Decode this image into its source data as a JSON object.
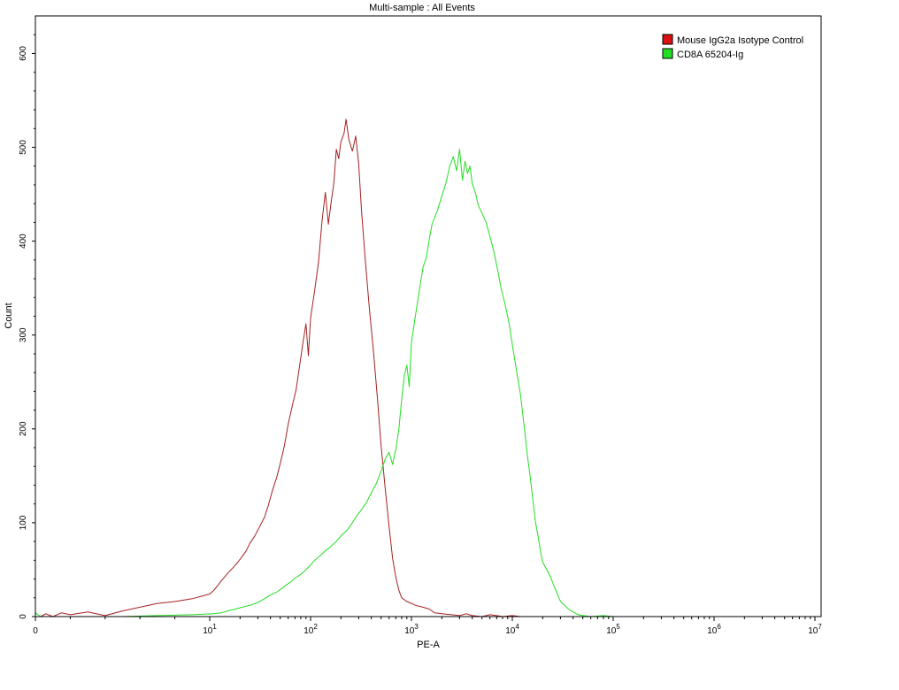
{
  "chart_data": {
    "type": "histogram-overlay",
    "title": "Multi-sample : All Events",
    "xlabel": "PE-A",
    "ylabel": "Count",
    "x_scale": "biexponential",
    "x_ticks": [
      {
        "value": 0,
        "base": "0",
        "exp": ""
      },
      {
        "value": 10,
        "base": "10",
        "exp": "1"
      },
      {
        "value": 100,
        "base": "10",
        "exp": "2"
      },
      {
        "value": 1000,
        "base": "10",
        "exp": "3"
      },
      {
        "value": 10000,
        "base": "10",
        "exp": "4"
      },
      {
        "value": 100000,
        "base": "10",
        "exp": "5"
      },
      {
        "value": 1000000,
        "base": "10",
        "exp": "6"
      },
      {
        "value": 10000000,
        "base": "10",
        "exp": "7"
      }
    ],
    "y_ticks": [
      {
        "value": 0,
        "label": "0"
      },
      {
        "value": 100,
        "label": "100"
      },
      {
        "value": 200,
        "label": "200"
      },
      {
        "value": 300,
        "label": "300"
      },
      {
        "value": 400,
        "label": "400"
      },
      {
        "value": 500,
        "label": "500"
      },
      {
        "value": 600,
        "label": "600"
      }
    ],
    "xlim": [
      0,
      10000000
    ],
    "ylim": [
      0,
      640
    ],
    "grid": false,
    "legend_position": "top-right",
    "series": [
      {
        "name": "Mouse IgG2a Isotype Control",
        "color": "#a52020",
        "points": [
          [
            0.3,
            0
          ],
          [
            0.6,
            3
          ],
          [
            1,
            0
          ],
          [
            1.5,
            4
          ],
          [
            2,
            2
          ],
          [
            3,
            5
          ],
          [
            4,
            1
          ],
          [
            5,
            6
          ],
          [
            6,
            10
          ],
          [
            7,
            14
          ],
          [
            8,
            16
          ],
          [
            9,
            19
          ],
          [
            10,
            24
          ],
          [
            11,
            28
          ],
          [
            12,
            33
          ],
          [
            13,
            38
          ],
          [
            14,
            42
          ],
          [
            15,
            46
          ],
          [
            17,
            52
          ],
          [
            19,
            58
          ],
          [
            21,
            64
          ],
          [
            23,
            70
          ],
          [
            25,
            78
          ],
          [
            28,
            86
          ],
          [
            31,
            95
          ],
          [
            35,
            106
          ],
          [
            38,
            118
          ],
          [
            42,
            135
          ],
          [
            46,
            148
          ],
          [
            50,
            163
          ],
          [
            55,
            182
          ],
          [
            60,
            205
          ],
          [
            66,
            225
          ],
          [
            72,
            242
          ],
          [
            78,
            268
          ],
          [
            84,
            292
          ],
          [
            90,
            312
          ],
          [
            95,
            278
          ],
          [
            100,
            318
          ],
          [
            110,
            348
          ],
          [
            120,
            378
          ],
          [
            130,
            422
          ],
          [
            140,
            452
          ],
          [
            150,
            418
          ],
          [
            160,
            442
          ],
          [
            170,
            462
          ],
          [
            180,
            498
          ],
          [
            190,
            488
          ],
          [
            200,
            506
          ],
          [
            215,
            515
          ],
          [
            225,
            530
          ],
          [
            240,
            508
          ],
          [
            260,
            496
          ],
          [
            280,
            512
          ],
          [
            300,
            482
          ],
          [
            320,
            432
          ],
          [
            350,
            378
          ],
          [
            380,
            332
          ],
          [
            420,
            282
          ],
          [
            460,
            232
          ],
          [
            500,
            182
          ],
          [
            550,
            136
          ],
          [
            600,
            96
          ],
          [
            650,
            62
          ],
          [
            700,
            42
          ],
          [
            750,
            28
          ],
          [
            800,
            20
          ],
          [
            900,
            16
          ],
          [
            1000,
            14
          ],
          [
            1100,
            12
          ],
          [
            1300,
            10
          ],
          [
            1500,
            8
          ],
          [
            1700,
            4
          ],
          [
            2000,
            3
          ],
          [
            2500,
            2
          ],
          [
            3000,
            1
          ],
          [
            3500,
            3
          ],
          [
            4000,
            1
          ],
          [
            5000,
            0
          ],
          [
            6000,
            2
          ],
          [
            7000,
            1
          ],
          [
            8000,
            0
          ],
          [
            10000,
            1
          ],
          [
            12000,
            0
          ]
        ]
      },
      {
        "name": "CD8A 65204-Ig",
        "color": "#22dd22",
        "points": [
          [
            0,
            0
          ],
          [
            0,
            550
          ],
          [
            0,
            200
          ],
          [
            0,
            4
          ],
          [
            0.3,
            0
          ],
          [
            1,
            0
          ],
          [
            2,
            0
          ],
          [
            3,
            0
          ],
          [
            5,
            0
          ],
          [
            7,
            1
          ],
          [
            9,
            2
          ],
          [
            11,
            3
          ],
          [
            13,
            4
          ],
          [
            15,
            6
          ],
          [
            18,
            8
          ],
          [
            21,
            10
          ],
          [
            25,
            12
          ],
          [
            30,
            15
          ],
          [
            35,
            19
          ],
          [
            40,
            23
          ],
          [
            46,
            26
          ],
          [
            52,
            30
          ],
          [
            58,
            34
          ],
          [
            64,
            37
          ],
          [
            70,
            41
          ],
          [
            80,
            45
          ],
          [
            90,
            50
          ],
          [
            100,
            55
          ],
          [
            110,
            60
          ],
          [
            125,
            65
          ],
          [
            140,
            70
          ],
          [
            160,
            75
          ],
          [
            180,
            80
          ],
          [
            200,
            86
          ],
          [
            230,
            92
          ],
          [
            260,
            100
          ],
          [
            290,
            108
          ],
          [
            320,
            114
          ],
          [
            360,
            122
          ],
          [
            400,
            132
          ],
          [
            450,
            142
          ],
          [
            500,
            155
          ],
          [
            550,
            168
          ],
          [
            600,
            175
          ],
          [
            650,
            162
          ],
          [
            700,
            178
          ],
          [
            750,
            200
          ],
          [
            800,
            232
          ],
          [
            850,
            257
          ],
          [
            900,
            268
          ],
          [
            950,
            245
          ],
          [
            1000,
            292
          ],
          [
            1100,
            322
          ],
          [
            1200,
            348
          ],
          [
            1300,
            372
          ],
          [
            1400,
            382
          ],
          [
            1500,
            402
          ],
          [
            1600,
            418
          ],
          [
            1800,
            432
          ],
          [
            2000,
            448
          ],
          [
            2200,
            462
          ],
          [
            2400,
            480
          ],
          [
            2600,
            490
          ],
          [
            2800,
            475
          ],
          [
            3000,
            498
          ],
          [
            3200,
            465
          ],
          [
            3400,
            485
          ],
          [
            3600,
            472
          ],
          [
            3800,
            480
          ],
          [
            4000,
            462
          ],
          [
            4300,
            452
          ],
          [
            4600,
            438
          ],
          [
            5000,
            430
          ],
          [
            5500,
            420
          ],
          [
            6000,
            405
          ],
          [
            6600,
            388
          ],
          [
            7200,
            368
          ],
          [
            7800,
            348
          ],
          [
            8500,
            332
          ],
          [
            9300,
            312
          ],
          [
            10000,
            290
          ],
          [
            11000,
            262
          ],
          [
            12000,
            238
          ],
          [
            13000,
            206
          ],
          [
            14000,
            174
          ],
          [
            15000,
            150
          ],
          [
            16000,
            124
          ],
          [
            17000,
            100
          ],
          [
            18000,
            86
          ],
          [
            19000,
            70
          ],
          [
            20000,
            58
          ],
          [
            22000,
            50
          ],
          [
            24000,
            42
          ],
          [
            26000,
            32
          ],
          [
            28000,
            24
          ],
          [
            30000,
            16
          ],
          [
            33000,
            12
          ],
          [
            36000,
            8
          ],
          [
            40000,
            5
          ],
          [
            45000,
            2
          ],
          [
            50000,
            1
          ],
          [
            60000,
            0
          ],
          [
            80000,
            1
          ],
          [
            100000,
            0
          ],
          [
            150000,
            0
          ]
        ]
      }
    ]
  }
}
